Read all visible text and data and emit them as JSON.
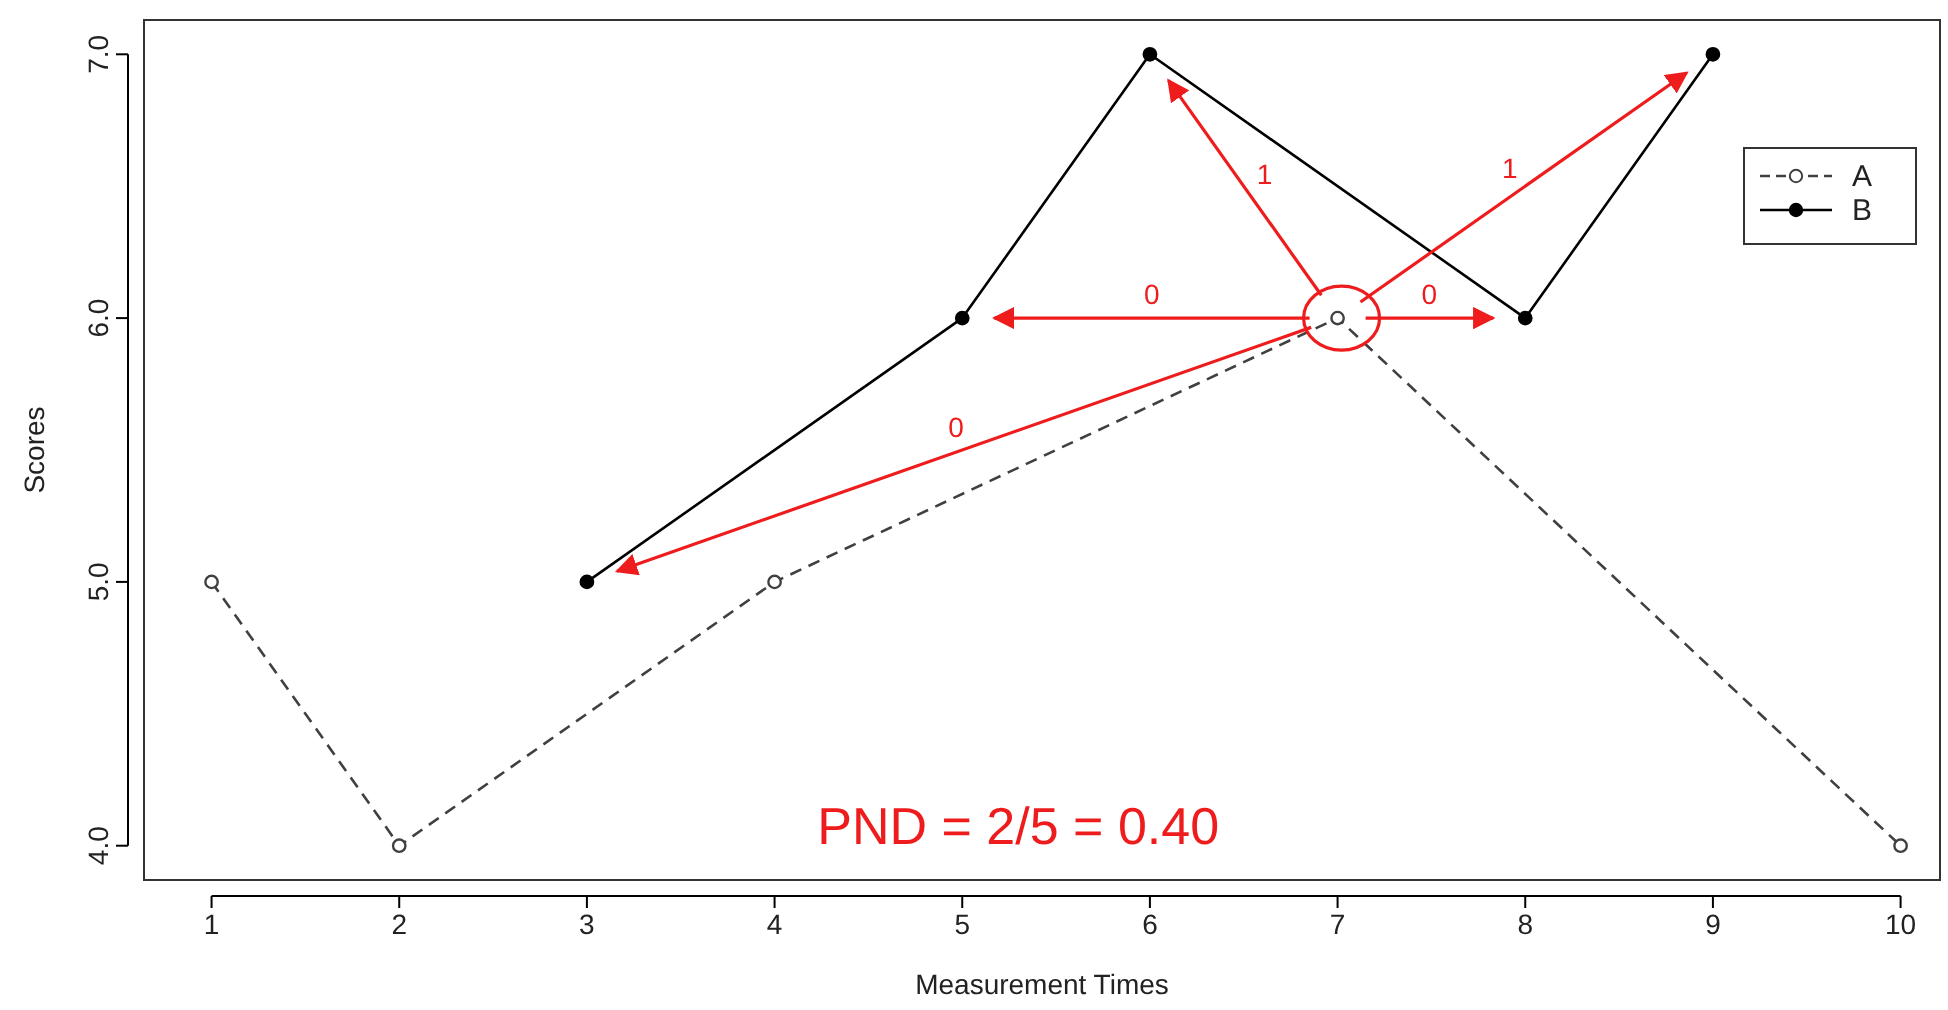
{
  "chart_data": {
    "type": "line",
    "xlabel": "Measurement Times",
    "ylabel": "Scores",
    "xlim": [
      0.64,
      10.21
    ],
    "ylim": [
      3.87,
      7.13
    ],
    "xticks": [
      1,
      2,
      3,
      4,
      5,
      6,
      7,
      8,
      9,
      10
    ],
    "yticks": [
      {
        "value": 4,
        "label": "4.0"
      },
      {
        "value": 5,
        "label": "5.0"
      },
      {
        "value": 6,
        "label": "6.0"
      },
      {
        "value": 7,
        "label": "7.0"
      }
    ],
    "grid": false,
    "legend": "top right",
    "marker": "circle",
    "series": [
      {
        "name": "A",
        "color": "#404040",
        "line_style": "dashed",
        "x": [
          1,
          2,
          4,
          7,
          10
        ],
        "values": [
          5,
          4,
          5,
          6,
          4
        ]
      },
      {
        "name": "B",
        "color": "#000000",
        "line_style": "solid",
        "x": [
          3,
          5,
          6,
          8,
          9
        ],
        "values": [
          5,
          6,
          7,
          6,
          7
        ]
      }
    ],
    "annotations": [
      "0",
      "0",
      "1",
      "0",
      "1",
      "PND = 2/5 = 0.40"
    ]
  }
}
